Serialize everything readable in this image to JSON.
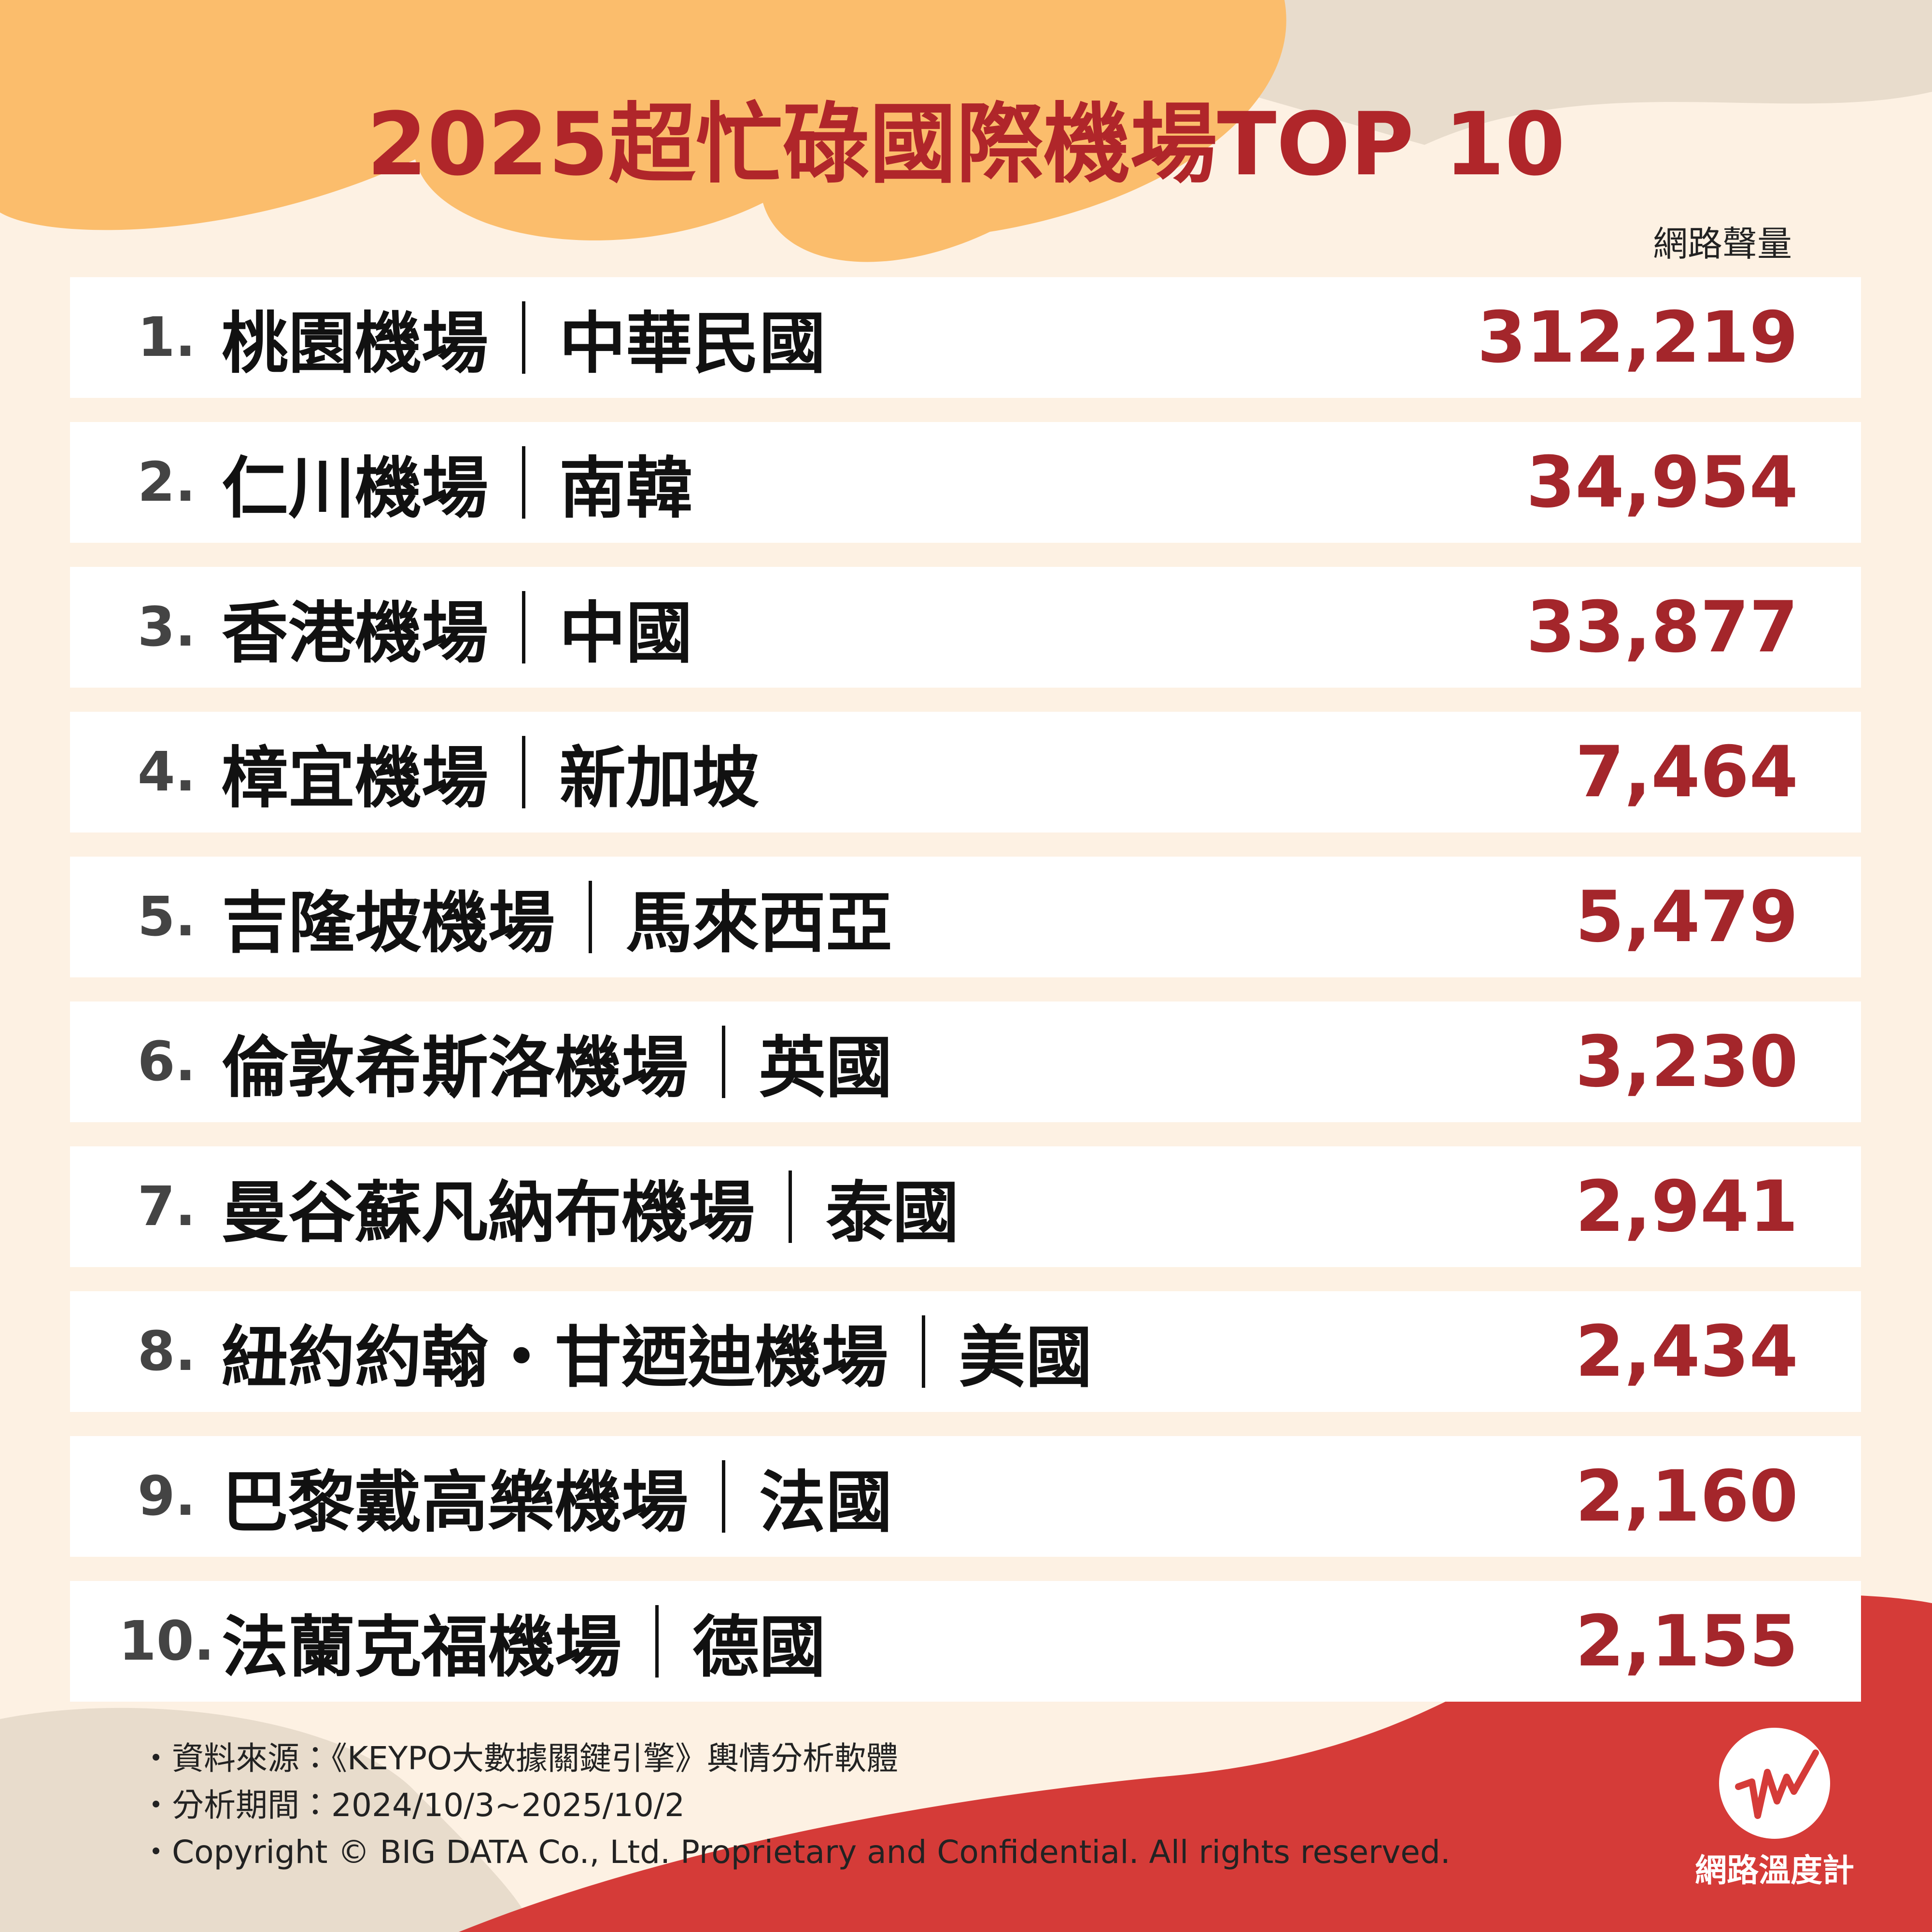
{
  "title": "2025超忙碌國際機場TOP 10",
  "column_header": "網路聲量",
  "rows": [
    {
      "rank": "1.",
      "airport": "桃園機場",
      "country": "中華民國",
      "volume": "312,219"
    },
    {
      "rank": "2.",
      "airport": "仁川機場",
      "country": "南韓",
      "volume": "34,954"
    },
    {
      "rank": "3.",
      "airport": "香港機場",
      "country": "中國",
      "volume": "33,877"
    },
    {
      "rank": "4.",
      "airport": "樟宜機場",
      "country": "新加坡",
      "volume": "7,464"
    },
    {
      "rank": "5.",
      "airport": "吉隆坡機場",
      "country": "馬來西亞",
      "volume": "5,479"
    },
    {
      "rank": "6.",
      "airport": "倫敦希斯洛機場",
      "country": "英國",
      "volume": "3,230"
    },
    {
      "rank": "7.",
      "airport": "曼谷蘇凡納布機場",
      "country": "泰國",
      "volume": "2,941"
    },
    {
      "rank": "8.",
      "airport": "紐約約翰・甘迺迪機場",
      "country": "美國",
      "volume": "2,434"
    },
    {
      "rank": "9.",
      "airport": "巴黎戴高樂機場",
      "country": "法國",
      "volume": "2,160"
    },
    {
      "rank": "10.",
      "airport": "法蘭克福機場",
      "country": "德國",
      "volume": "2,155"
    }
  ],
  "footer": {
    "notes": [
      "資料來源：《KEYPO大數據關鍵引擎》輿情分析軟體",
      "分析期間：2024/10/3~2025/10/2",
      "Copyright © BIG DATA Co., Ltd. Proprietary and Confidential. All rights reserved."
    ]
  },
  "logo": {
    "label": "網路溫度計"
  }
}
